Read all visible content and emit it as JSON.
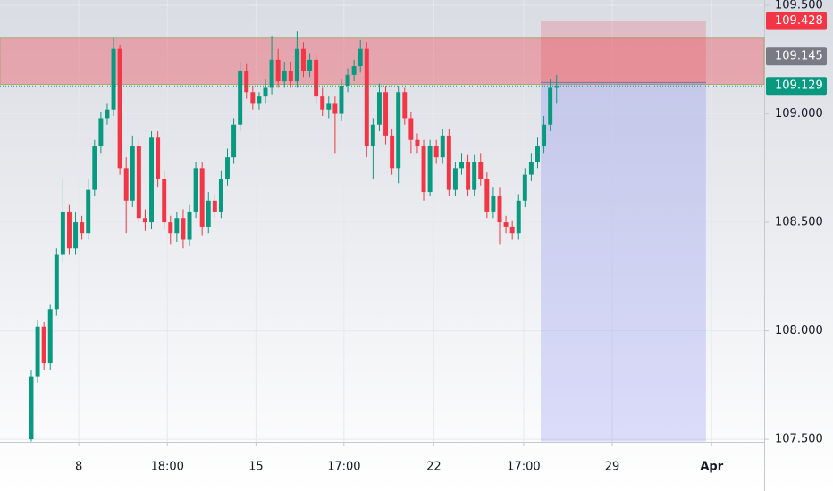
{
  "chart_data": {
    "type": "candlestick",
    "xlim": [
      -4.94,
      115.8
    ],
    "ylim": [
      107.488,
      109.525
    ],
    "xticks": [
      {
        "value": 7.5,
        "label": "8"
      },
      {
        "value": 21.5,
        "label": "18:00"
      },
      {
        "value": 35.5,
        "label": "15"
      },
      {
        "value": 49.4,
        "label": "17:00"
      },
      {
        "value": 63.6,
        "label": "22"
      },
      {
        "value": 77.8,
        "label": "17:00"
      },
      {
        "value": 91.8,
        "label": "29"
      },
      {
        "value": 107.5,
        "label": "Apr"
      }
    ],
    "yticks": [
      {
        "value": 107.5,
        "label": "107.500"
      },
      {
        "value": 108,
        "label": "108.000"
      },
      {
        "value": 108.5,
        "label": "108.500"
      },
      {
        "value": 109,
        "label": "109.000"
      },
      {
        "value": 109.5,
        "label": "109.500"
      }
    ],
    "grid": true,
    "up_color": "#089981",
    "down_color": "#f23645",
    "open": [
      107.5,
      107.79,
      108.02,
      107.85,
      108.1,
      108.35,
      108.55,
      108.38,
      108.5,
      108.45,
      108.65,
      108.85,
      108.98,
      109.02,
      109.3,
      108.75,
      108.6,
      108.85,
      108.52,
      108.5,
      108.89,
      108.7,
      108.5,
      108.45,
      108.52,
      108.42,
      108.55,
      108.75,
      108.48,
      108.6,
      108.55,
      108.7,
      108.8,
      108.95,
      109.2,
      109.1,
      109.05,
      109.08,
      109.12,
      109.25,
      109.15,
      109.2,
      109.15,
      109.3,
      109.2,
      109.25,
      109.08,
      109.02,
      109.05,
      109.0,
      109.13,
      109.18,
      109.22,
      109.3,
      108.85,
      108.95,
      109.1,
      108.9,
      108.75,
      109.1,
      108.98,
      108.88,
      108.85,
      108.64,
      108.85,
      108.8,
      108.9,
      108.65,
      108.75,
      108.78,
      108.65,
      108.78,
      108.7,
      108.55,
      108.62,
      108.5,
      108.48,
      108.45,
      108.6,
      108.72,
      108.78,
      108.85,
      108.95,
      109.12
    ],
    "high": [
      107.82,
      108.05,
      108.04,
      108.12,
      108.38,
      108.7,
      108.58,
      108.55,
      108.53,
      108.7,
      108.88,
      109.01,
      109.05,
      109.35,
      109.32,
      108.8,
      108.9,
      108.88,
      108.56,
      108.92,
      108.92,
      108.74,
      108.53,
      108.55,
      108.56,
      108.58,
      108.78,
      108.78,
      108.64,
      108.63,
      108.74,
      108.84,
      108.98,
      109.24,
      109.23,
      109.13,
      109.1,
      109.16,
      109.36,
      109.3,
      109.24,
      109.24,
      109.38,
      109.33,
      109.28,
      109.28,
      109.12,
      109.08,
      109.08,
      109.16,
      109.21,
      109.25,
      109.34,
      109.33,
      108.98,
      109.14,
      109.13,
      108.93,
      109.13,
      109.12,
      109.01,
      108.91,
      108.88,
      108.88,
      108.88,
      108.93,
      108.93,
      108.78,
      108.82,
      108.81,
      108.81,
      108.82,
      108.73,
      108.66,
      108.66,
      108.53,
      108.51,
      108.63,
      108.75,
      108.82,
      108.89,
      108.99,
      109.16,
      109.18
    ],
    "low": [
      107.49,
      107.76,
      107.82,
      107.82,
      108.07,
      108.32,
      108.35,
      108.35,
      108.42,
      108.42,
      108.62,
      108.82,
      108.95,
      108.99,
      108.72,
      108.45,
      108.57,
      108.5,
      108.46,
      108.47,
      108.66,
      108.47,
      108.4,
      108.41,
      108.38,
      108.39,
      108.52,
      108.44,
      108.45,
      108.52,
      108.52,
      108.67,
      108.77,
      108.92,
      109.07,
      109.02,
      109.02,
      109.05,
      109.09,
      109.12,
      109.12,
      109.12,
      109.12,
      109.17,
      109.17,
      109.05,
      108.99,
      108.98,
      108.82,
      108.97,
      109.1,
      109.15,
      109.19,
      108.8,
      108.7,
      108.92,
      108.86,
      108.72,
      108.68,
      108.95,
      108.82,
      108.82,
      108.6,
      108.62,
      108.77,
      108.77,
      108.62,
      108.62,
      108.72,
      108.62,
      108.62,
      108.67,
      108.52,
      108.52,
      108.4,
      108.45,
      108.42,
      108.42,
      108.57,
      108.69,
      108.75,
      108.82,
      108.92,
      109.05
    ],
    "close": [
      107.79,
      108.02,
      107.85,
      108.1,
      108.35,
      108.55,
      108.38,
      108.5,
      108.45,
      108.65,
      108.85,
      108.98,
      109.02,
      109.3,
      108.75,
      108.6,
      108.85,
      108.52,
      108.5,
      108.89,
      108.7,
      108.5,
      108.45,
      108.52,
      108.42,
      108.55,
      108.75,
      108.48,
      108.6,
      108.55,
      108.7,
      108.8,
      108.95,
      109.2,
      109.1,
      109.05,
      109.08,
      109.12,
      109.25,
      109.15,
      109.2,
      109.15,
      109.3,
      109.2,
      109.25,
      109.08,
      109.02,
      109.05,
      109.0,
      109.13,
      109.18,
      109.22,
      109.3,
      108.85,
      108.95,
      109.1,
      108.9,
      108.75,
      109.1,
      108.98,
      108.88,
      108.85,
      108.64,
      108.85,
      108.8,
      108.9,
      108.65,
      108.75,
      108.78,
      108.65,
      108.78,
      108.7,
      108.55,
      108.62,
      108.5,
      108.48,
      108.45,
      108.6,
      108.72,
      108.78,
      108.85,
      108.95,
      109.12,
      109.129
    ],
    "resistance_zone": {
      "top": 109.349,
      "bottom": 109.136,
      "color": "#f23645"
    },
    "position": {
      "entry": 109.145,
      "stop": 109.428,
      "target": 107.49,
      "x_start": 80.5,
      "x_end": 106.6,
      "stop_color": "#f23645",
      "target_color": "#6a6cf0",
      "entry_color": "#787b86"
    }
  }
}
